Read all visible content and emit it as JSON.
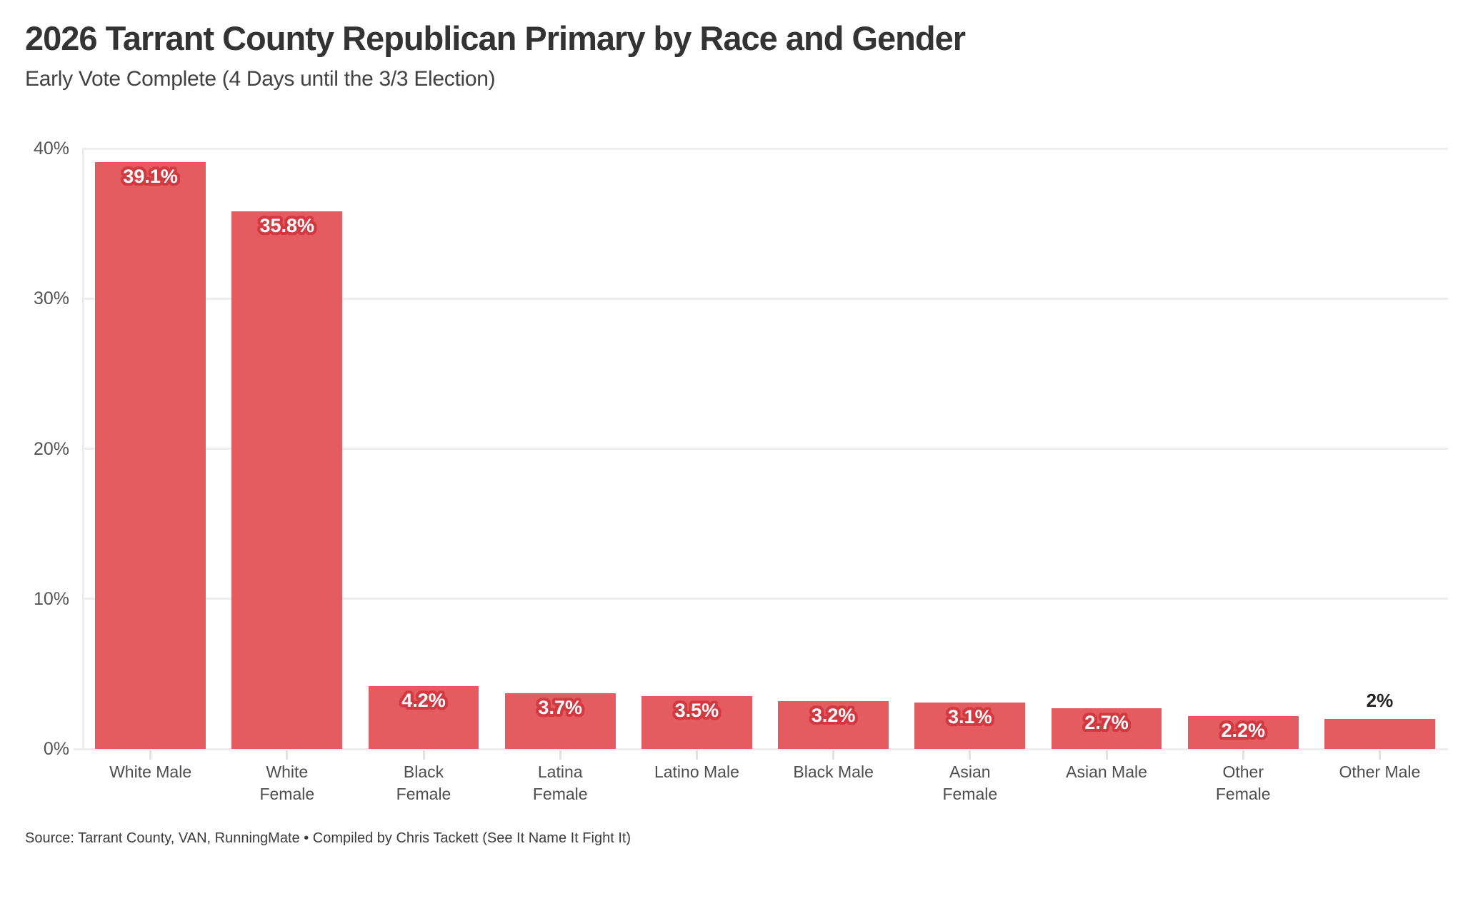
{
  "header": {
    "title": "2026 Tarrant County Republican Primary by Race and Gender",
    "subtitle": "Early Vote Complete (4 Days until the 3/3 Election)"
  },
  "footer": {
    "source": "Source: Tarrant County, VAN, RunningMate • Compiled by Chris Tackett (See It Name It Fight It)"
  },
  "chart_data": {
    "type": "bar",
    "title": "2026 Tarrant County Republican Primary by Race and Gender",
    "subtitle": "Early Vote Complete (4 Days until the 3/3 Election)",
    "categories": [
      "White Male",
      "White Female",
      "Black Female",
      "Latina Female",
      "Latino Male",
      "Black Male",
      "Asian Female",
      "Asian Male",
      "Other Female",
      "Other Male"
    ],
    "category_lines": [
      [
        "White Male"
      ],
      [
        "White",
        "Female"
      ],
      [
        "Black",
        "Female"
      ],
      [
        "Latina",
        "Female"
      ],
      [
        "Latino Male"
      ],
      [
        "Black Male"
      ],
      [
        "Asian",
        "Female"
      ],
      [
        "Asian Male"
      ],
      [
        "Other",
        "Female"
      ],
      [
        "Other Male"
      ]
    ],
    "values": [
      39.1,
      35.8,
      4.2,
      3.7,
      3.5,
      3.2,
      3.1,
      2.7,
      2.2,
      2
    ],
    "value_labels": [
      "39.1%",
      "35.8%",
      "4.2%",
      "3.7%",
      "3.5%",
      "3.2%",
      "3.1%",
      "2.7%",
      "2.2%",
      "2%"
    ],
    "value_label_position": [
      "inside",
      "inside",
      "inside",
      "inside",
      "inside",
      "inside",
      "inside",
      "inside",
      "inside",
      "above"
    ],
    "xlabel": "",
    "ylabel": "",
    "ylim": [
      0,
      40
    ],
    "yticks": [
      {
        "value": 0,
        "label": "0%"
      },
      {
        "value": 10,
        "label": "10%"
      },
      {
        "value": 20,
        "label": "20%"
      },
      {
        "value": 30,
        "label": "30%"
      },
      {
        "value": 40,
        "label": "40%"
      }
    ],
    "grid": true,
    "legend": "none",
    "colors": {
      "bar": "#e45c5f",
      "value_label_text": "#ffffff",
      "value_label_outline": "#d23940",
      "value_label_above_text": "#232323",
      "gridline": "#ededed",
      "x_tick": "#e2e2e2",
      "axis_label_text": "#545454",
      "category_label_text": "#4d4d4d",
      "title_text": "#333333",
      "subtitle_text": "#424242",
      "source_text": "#3b3b3b",
      "background": "#ffffff"
    }
  }
}
